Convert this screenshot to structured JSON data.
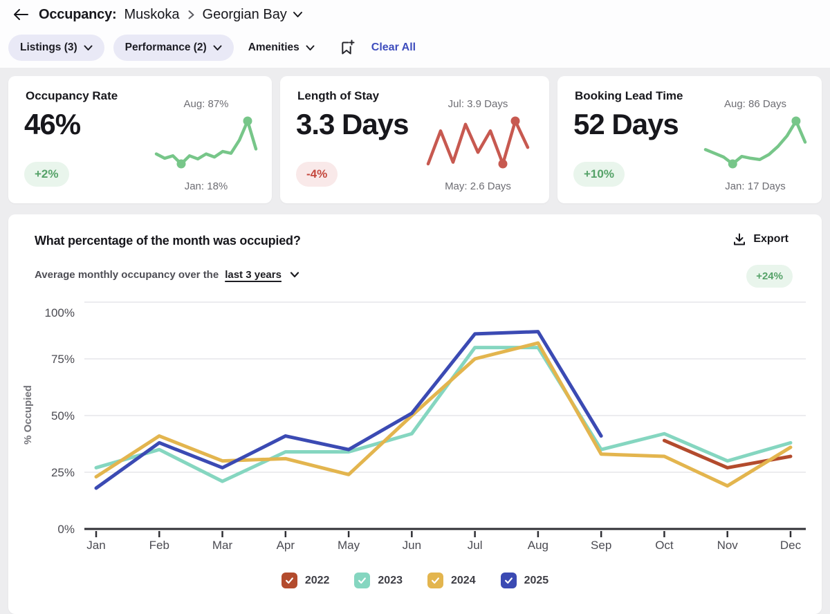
{
  "header": {
    "title": "Occupancy:",
    "region": "Muskoka",
    "subregion": "Georgian Bay"
  },
  "filters": {
    "listings": "Listings (3)",
    "performance": "Performance (2)",
    "amenities": "Amenities",
    "clear_all": "Clear All"
  },
  "kpi_cards": [
    {
      "title": "Occupancy Rate",
      "value": "46%",
      "delta": "+2%",
      "trend": "up",
      "spark_color": "#77c689",
      "label_top": "Aug: 87%",
      "label_bottom": "Jan: 18%",
      "spark_values": [
        34,
        27,
        31,
        18,
        31,
        26,
        34,
        29,
        38,
        35,
        56,
        87,
        42
      ],
      "dot_indices": [
        3,
        11
      ]
    },
    {
      "title": "Length of Stay",
      "value": "3.3 Days",
      "delta": "-4%",
      "trend": "down",
      "spark_color": "#c75950",
      "label_top": "Jul: 3.9 Days",
      "label_bottom": "May: 2.6 Days",
      "spark_values": [
        2.6,
        3.6,
        2.65,
        3.8,
        2.95,
        3.6,
        2.6,
        3.9,
        3.1
      ],
      "dot_indices": [
        6,
        7
      ]
    },
    {
      "title": "Booking Lead Time",
      "value": "52 Days",
      "delta": "+10%",
      "trend": "up",
      "spark_color": "#77c689",
      "label_top": "Aug: 86 Days",
      "label_bottom": "Jan: 17 Days",
      "spark_values": [
        40,
        34,
        28,
        17,
        29,
        26,
        24,
        32,
        45,
        62,
        86,
        52
      ],
      "dot_indices": [
        3,
        10
      ]
    }
  ],
  "main_chart": {
    "title": "What percentage of the month was occupied?",
    "export_label": "Export",
    "subtitle_prefix": "Average monthly occupancy over the",
    "subtitle_link": "last 3 years",
    "delta_badge": "+24%"
  },
  "chart_data": {
    "type": "line",
    "title": "What percentage of the month was occupied?",
    "ylabel": "% Occupied",
    "ylim": [
      0,
      100
    ],
    "ytick_values": [
      0,
      25,
      50,
      75,
      100
    ],
    "ytick_labels": [
      "0%",
      "25%",
      "50%",
      "75%",
      "100%"
    ],
    "grid": true,
    "legend_position": "bottom",
    "categories": [
      "Jan",
      "Feb",
      "Mar",
      "Apr",
      "May",
      "Jun",
      "Jul",
      "Aug",
      "Sep",
      "Oct",
      "Nov",
      "Dec"
    ],
    "series": [
      {
        "name": "2022",
        "color": "#b34b2d",
        "values": [
          null,
          null,
          null,
          null,
          null,
          null,
          null,
          null,
          null,
          39,
          27,
          32
        ]
      },
      {
        "name": "2023",
        "color": "#85d6c0",
        "values": [
          27,
          35,
          21,
          34,
          34,
          42,
          80,
          80,
          35,
          42,
          30,
          38
        ]
      },
      {
        "name": "2024",
        "color": "#e3b54e",
        "values": [
          23,
          41,
          30,
          31,
          24,
          50,
          75,
          82,
          33,
          32,
          19,
          36
        ]
      },
      {
        "name": "2025",
        "color": "#3b4ab3",
        "values": [
          18,
          38,
          27,
          41,
          35,
          51,
          86,
          87,
          41,
          null,
          null,
          null
        ]
      }
    ]
  },
  "colors": {
    "positive_text": "#55a268",
    "positive_bg": "#e9f5ec",
    "negative_text": "#c4483e",
    "negative_bg": "#f9e9e9",
    "link_blue": "#3e4dbd"
  }
}
